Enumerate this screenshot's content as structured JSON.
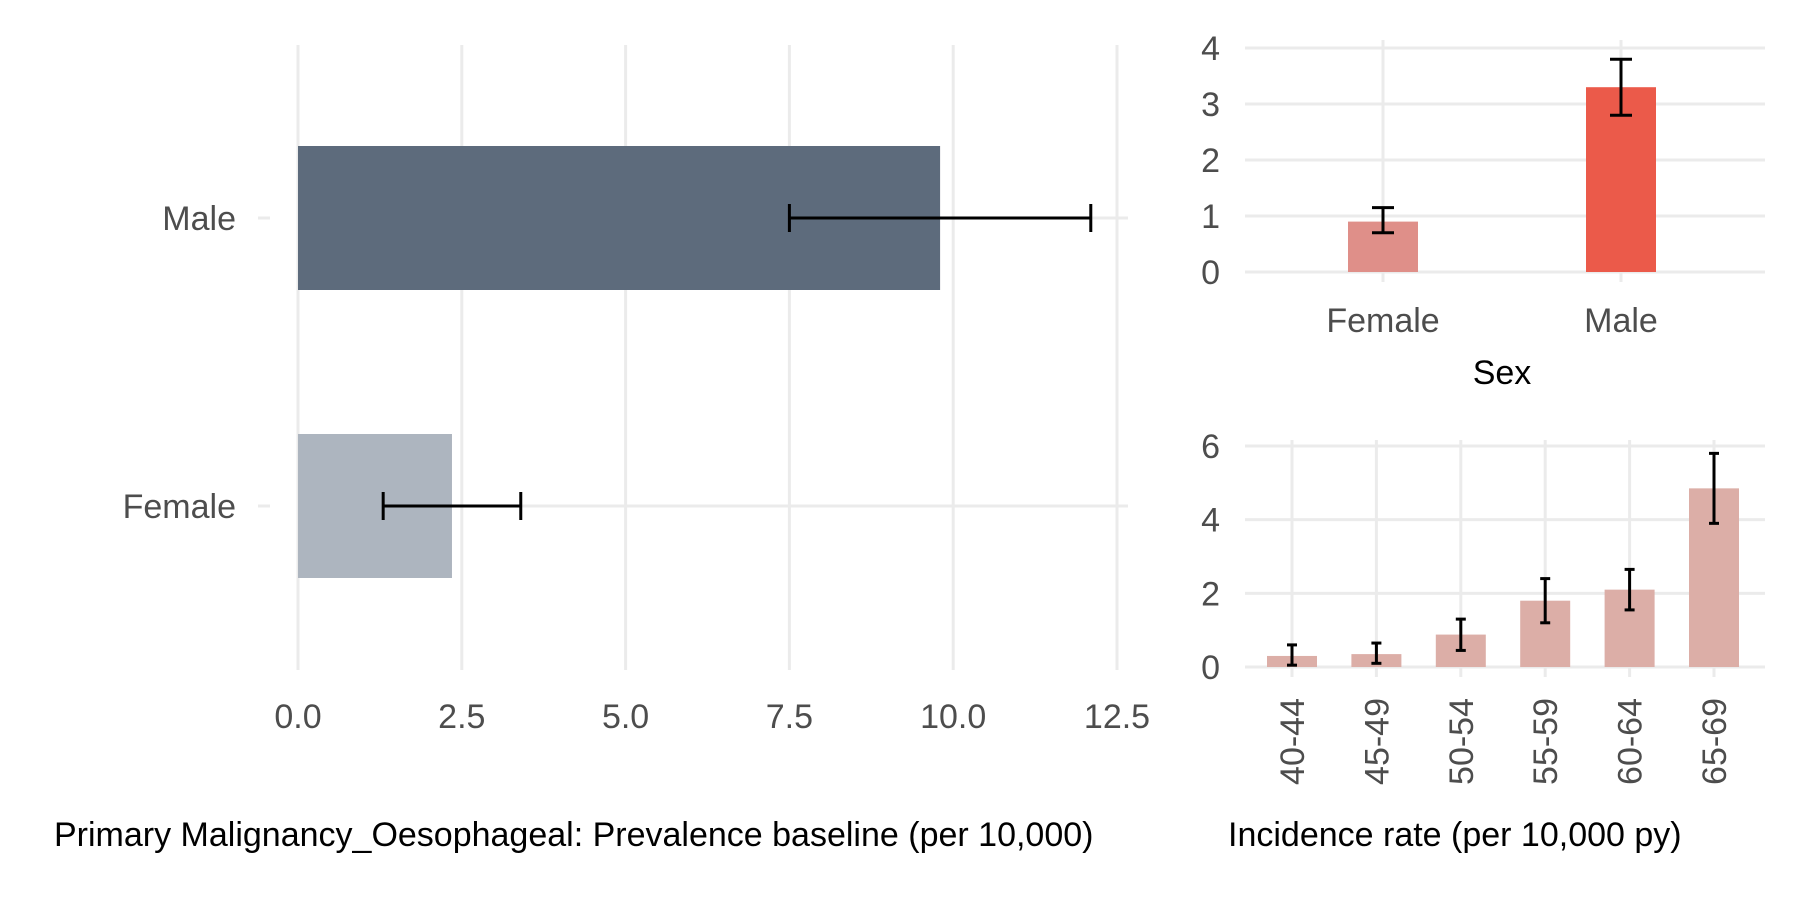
{
  "chart_data": [
    {
      "type": "bar",
      "orientation": "horizontal",
      "categories": [
        "Male",
        "Female"
      ],
      "values": [
        9.8,
        2.35
      ],
      "error_low": [
        7.5,
        1.3
      ],
      "error_high": [
        12.1,
        3.4
      ],
      "colors": [
        "#5d6b7c",
        "#adb5bf"
      ],
      "xlabel": "Primary Malignancy_Oesophageal: Prevalence baseline (per 10,000)",
      "ylabel": "",
      "xlim": [
        0,
        12.5
      ],
      "xticks": [
        "0.0",
        "2.5",
        "5.0",
        "7.5",
        "10.0",
        "12.5"
      ],
      "grid": true
    },
    {
      "type": "bar",
      "categories": [
        "Female",
        "Male"
      ],
      "values": [
        0.9,
        3.3
      ],
      "error_low": [
        0.7,
        2.8
      ],
      "error_high": [
        1.15,
        3.8
      ],
      "colors": [
        "#df8f89",
        "#eb5a4a"
      ],
      "xlabel": "Sex",
      "ylabel": "",
      "ylim": [
        0,
        4
      ],
      "yticks": [
        "0",
        "1",
        "2",
        "3",
        "4"
      ],
      "grid": true
    },
    {
      "type": "bar",
      "categories": [
        "40-44",
        "45-49",
        "50-54",
        "55-59",
        "60-64",
        "65-69"
      ],
      "values": [
        0.3,
        0.35,
        0.88,
        1.8,
        2.1,
        4.85
      ],
      "error_low": [
        0.05,
        0.1,
        0.45,
        1.2,
        1.55,
        3.9
      ],
      "error_high": [
        0.6,
        0.65,
        1.3,
        2.4,
        2.65,
        5.8
      ],
      "colors": [
        "#dcaea7"
      ],
      "xlabel": "Incidence rate (per 10,000 py)",
      "ylabel": "",
      "ylim": [
        0,
        6
      ],
      "yticks": [
        "0",
        "2",
        "4",
        "6"
      ],
      "grid": true
    }
  ]
}
